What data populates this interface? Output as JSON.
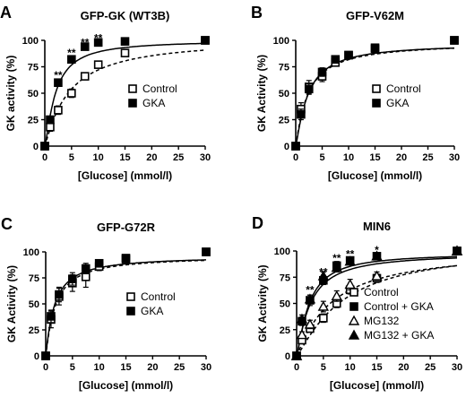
{
  "colors": {
    "ink": "#000000",
    "background": "#ffffff"
  },
  "chart_data": [
    {
      "panel_label": "A",
      "type": "scatter",
      "title": "GFP-GK (WT3B)",
      "xlabel": "[Glucose] (mmol/l)",
      "ylabel": "GK activity (%)",
      "xlim": [
        0,
        30
      ],
      "ylim": [
        0,
        100
      ],
      "xticks": [
        "0",
        "5",
        "10",
        "15",
        "20",
        "25",
        "30"
      ],
      "yticks": [
        "0",
        "25",
        "50",
        "75",
        "100"
      ],
      "legend_position": "center-right",
      "series": [
        {
          "name": "Control",
          "marker": "square-open",
          "line": "dashed",
          "x": [
            0,
            1,
            2.5,
            5,
            7.5,
            10,
            15,
            30
          ],
          "y": [
            0,
            18,
            34,
            50,
            66,
            77,
            88,
            100
          ],
          "err": [
            0,
            4,
            4,
            4,
            3,
            3,
            2,
            0
          ]
        },
        {
          "name": "GKA",
          "marker": "square-filled",
          "line": "solid",
          "x": [
            0,
            1,
            2.5,
            5,
            7.5,
            10,
            15,
            30
          ],
          "y": [
            0,
            25,
            60,
            82,
            94,
            98,
            99,
            100
          ],
          "err": [
            0,
            3,
            3,
            3,
            2,
            2,
            1,
            0
          ]
        }
      ],
      "fits": [
        {
          "series": "Control",
          "vmax": 102,
          "k": 4.5,
          "h": 1.1
        },
        {
          "series": "GKA",
          "vmax": 100,
          "k": 2.0,
          "h": 1.3
        }
      ],
      "annotations": [
        {
          "text": "**",
          "x": 2.5,
          "y": 67
        },
        {
          "text": "**",
          "x": 5,
          "y": 88
        },
        {
          "text": "**",
          "x": 7.5,
          "y": 98
        },
        {
          "text": "**",
          "x": 10,
          "y": 102
        }
      ]
    },
    {
      "panel_label": "B",
      "type": "scatter",
      "title": "GFP-V62M",
      "xlabel": "[Glucose] (mmol/l)",
      "ylabel": "GK Activity (%)",
      "xlim": [
        0,
        30
      ],
      "ylim": [
        0,
        100
      ],
      "xticks": [
        "0",
        "5",
        "10",
        "15",
        "20",
        "25",
        "30"
      ],
      "yticks": [
        "0",
        "25",
        "50",
        "75",
        "100"
      ],
      "legend_position": "center-right",
      "series": [
        {
          "name": "Control",
          "marker": "square-open",
          "line": "dashed",
          "x": [
            0,
            1,
            2.5,
            5,
            7.5,
            10,
            15,
            30
          ],
          "y": [
            0,
            35,
            56,
            66,
            79,
            86,
            92,
            100
          ],
          "err": [
            0,
            6,
            6,
            5,
            3,
            3,
            2,
            0
          ]
        },
        {
          "name": "GKA",
          "marker": "square-filled",
          "line": "solid",
          "x": [
            0,
            1,
            2.5,
            5,
            7.5,
            10,
            15,
            30
          ],
          "y": [
            0,
            30,
            54,
            70,
            82,
            86,
            93,
            100
          ],
          "err": [
            0,
            5,
            5,
            4,
            3,
            3,
            2,
            0
          ]
        }
      ],
      "fits": [
        {
          "series": "Control",
          "vmax": 98,
          "k": 2.3,
          "h": 1.1
        },
        {
          "series": "GKA",
          "vmax": 97,
          "k": 2.3,
          "h": 1.2
        }
      ],
      "annotations": []
    },
    {
      "panel_label": "C",
      "type": "scatter",
      "title": "GFP-G72R",
      "xlabel": "[Glucose] (mmol/l)",
      "ylabel": "GK Activity (%)",
      "xlim": [
        0,
        30
      ],
      "ylim": [
        0,
        100
      ],
      "xticks": [
        "0",
        "5",
        "10",
        "15",
        "20",
        "25",
        "30"
      ],
      "yticks": [
        "0",
        "25",
        "50",
        "75",
        "100"
      ],
      "legend_position": "center-right",
      "series": [
        {
          "name": "Control",
          "marker": "square-open",
          "line": "dashed",
          "x": [
            0,
            1,
            2.5,
            5,
            7.5,
            10,
            15,
            30
          ],
          "y": [
            0,
            35,
            57,
            70,
            76,
            86,
            93,
            100
          ],
          "err": [
            0,
            8,
            8,
            8,
            10,
            4,
            2,
            0
          ]
        },
        {
          "name": "GKA",
          "marker": "square-filled",
          "line": "solid",
          "x": [
            0,
            1,
            2.5,
            5,
            7.5,
            10,
            15,
            30
          ],
          "y": [
            0,
            38,
            59,
            74,
            84,
            89,
            94,
            100
          ],
          "err": [
            0,
            6,
            7,
            6,
            5,
            3,
            2,
            0
          ]
        }
      ],
      "fits": [
        {
          "series": "Control",
          "vmax": 96,
          "k": 1.8,
          "h": 1.1
        },
        {
          "series": "GKA",
          "vmax": 96,
          "k": 1.6,
          "h": 1.1
        }
      ],
      "annotations": []
    },
    {
      "panel_label": "D",
      "type": "scatter",
      "title": "MIN6",
      "xlabel": "[Glucose] (mmol/l)",
      "ylabel": "GK Activity (%)",
      "xlim": [
        0,
        30
      ],
      "ylim": [
        0,
        100
      ],
      "xticks": [
        "0",
        "5",
        "10",
        "15",
        "20",
        "25",
        "30"
      ],
      "yticks": [
        "0",
        "25",
        "50",
        "75",
        "100"
      ],
      "legend_position": "bottom-right",
      "series": [
        {
          "name": "Control",
          "marker": "square-open",
          "line": "dashed",
          "x": [
            0,
            1,
            2.5,
            5,
            7.5,
            10,
            15,
            30
          ],
          "y": [
            0,
            15,
            26,
            36,
            50,
            63,
            74,
            100
          ],
          "err": [
            0,
            3,
            3,
            4,
            4,
            4,
            4,
            0
          ]
        },
        {
          "name": "Control + GKA",
          "marker": "square-filled",
          "line": "solid",
          "x": [
            0,
            1,
            2.5,
            5,
            7.5,
            10,
            15,
            30
          ],
          "y": [
            0,
            33,
            53,
            72,
            86,
            91,
            95,
            100
          ],
          "err": [
            0,
            4,
            5,
            4,
            4,
            3,
            3,
            0
          ]
        },
        {
          "name": "MG132",
          "marker": "triangle-open",
          "line": "dashed",
          "x": [
            0,
            1,
            2.5,
            5,
            7.5,
            10,
            15,
            30
          ],
          "y": [
            0,
            20,
            30,
            47,
            57,
            68,
            76,
            100
          ],
          "err": [
            0,
            3,
            4,
            5,
            5,
            5,
            4,
            0
          ]
        },
        {
          "name": "MG132 + GKA",
          "marker": "triangle-filled",
          "line": "solid",
          "x": [
            0,
            1,
            2.5,
            5,
            7.5,
            10,
            15,
            30
          ],
          "y": [
            0,
            35,
            54,
            76,
            84,
            90,
            95,
            100
          ],
          "err": [
            0,
            4,
            4,
            4,
            4,
            3,
            3,
            0
          ]
        }
      ],
      "fits": [
        {
          "series": "Control",
          "vmax": 105,
          "k": 8.5,
          "h": 1.2
        },
        {
          "series": "Control + GKA",
          "vmax": 98,
          "k": 2.3,
          "h": 1.3
        },
        {
          "series": "MG132",
          "vmax": 102,
          "k": 6.5,
          "h": 1.1
        },
        {
          "series": "MG132 + GKA",
          "vmax": 98,
          "k": 2.5,
          "h": 1.2
        }
      ],
      "annotations": [
        {
          "text": "**",
          "x": 2.5,
          "y": 63
        },
        {
          "text": "**",
          "x": 5,
          "y": 80
        },
        {
          "text": "**",
          "x": 7.5,
          "y": 93
        },
        {
          "text": "**",
          "x": 10,
          "y": 97
        },
        {
          "text": "*",
          "x": 15,
          "y": 101
        }
      ]
    }
  ]
}
